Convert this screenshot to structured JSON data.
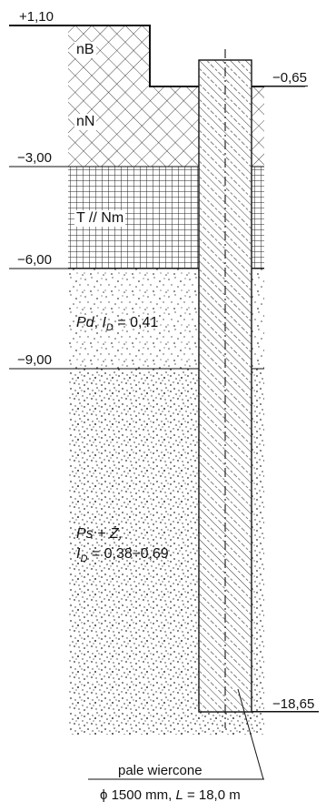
{
  "levels": {
    "top": "+1,10",
    "pile_head": "−0,65",
    "l1": "−3,00",
    "l2": "−6,00",
    "l3": "−9,00",
    "pile_toe": "−18,65"
  },
  "layers": {
    "nB": "nB",
    "nN": "nN",
    "TNm": "T // Nm",
    "pd": {
      "name": "Pd",
      "sep": ", ",
      "sym": "I",
      "sub": "D",
      "rest": " = 0,41"
    },
    "ps": {
      "name": "Ps + Ż,",
      "sym": "I",
      "sub": "D",
      "rest": " = 0,38÷0,69"
    }
  },
  "pile": {
    "label": "pale wiercone",
    "spec_phi": "ϕ",
    "spec_dia": " 1500 mm, ",
    "spec_L": "L",
    "spec_len": " = 18,0 m"
  }
}
